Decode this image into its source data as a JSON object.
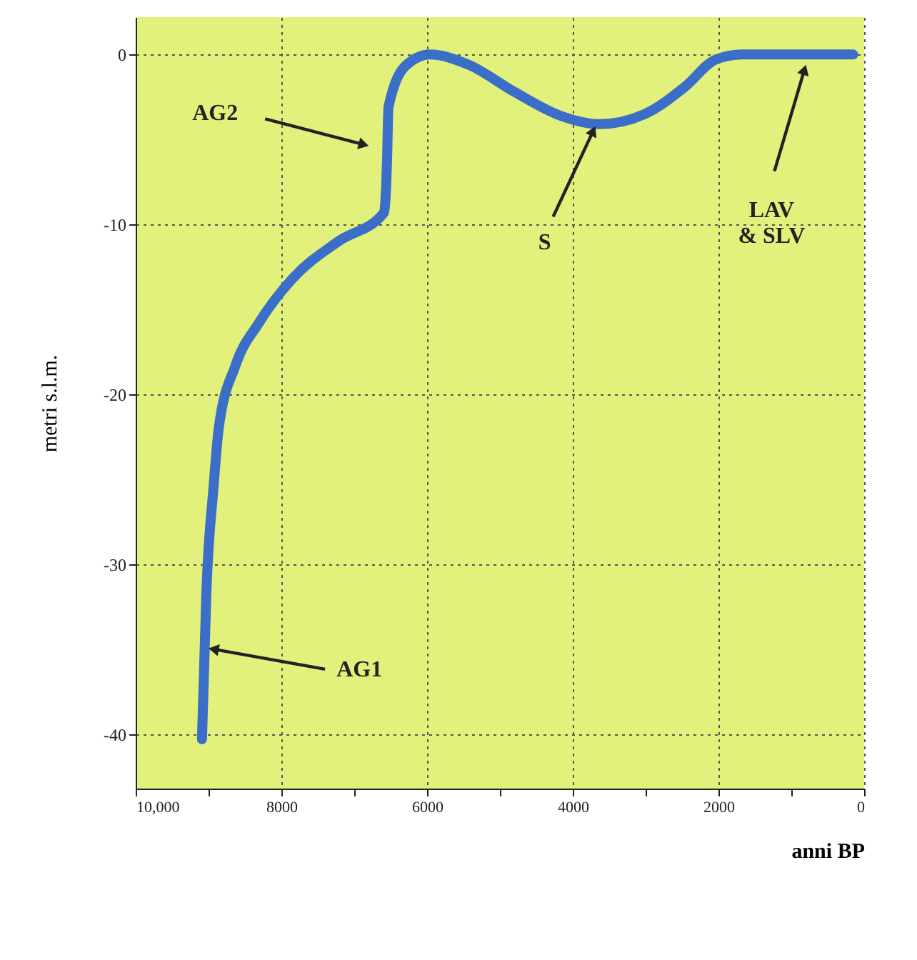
{
  "chart_data": {
    "type": "line",
    "xlabel": "anni BP",
    "ylabel": "metri s.l.m.",
    "x": [
      9090,
      9030,
      8930,
      8860,
      8630,
      8310,
      7850,
      7220,
      6590,
      6550,
      6530,
      6280,
      5960,
      5430,
      4800,
      4170,
      3640,
      3010,
      2460,
      2040,
      1680,
      150
    ],
    "series": [
      {
        "color": "#3a6ec8",
        "values": [
          -40.3,
          -31.7,
          -25.4,
          -22.0,
          -18.3,
          -15.8,
          -13.2,
          -11.0,
          -9.3,
          -6.3,
          -3.1,
          -0.6,
          0.0,
          -0.6,
          -2.2,
          -3.6,
          -4.1,
          -3.5,
          -1.9,
          -0.3,
          0.0,
          0.0
        ]
      }
    ],
    "xlim": [
      10000,
      0
    ],
    "ylim": [
      -43.2,
      2.2
    ],
    "xticks": [
      {
        "value": 10000,
        "label": "10,000"
      },
      {
        "value": 9000,
        "label": null
      },
      8000,
      {
        "value": 7000,
        "label": null
      },
      6000,
      {
        "value": 5000,
        "label": null
      },
      4000,
      {
        "value": 3000,
        "label": null
      },
      2000,
      {
        "value": 1000,
        "label": null
      },
      0
    ],
    "yticks": [
      0,
      -10,
      -20,
      -30,
      -40
    ],
    "grid": true,
    "line_style": "solid",
    "annotations": [
      {
        "text": "AG2",
        "x": 6870,
        "y": -5.3
      },
      {
        "text": "S",
        "x": 3720,
        "y": -4.5
      },
      {
        "text": "LAV\n& SLV",
        "x": 820,
        "y": -0.9
      },
      {
        "text": "AG1",
        "x": 8930,
        "y": -35.0
      }
    ]
  }
}
